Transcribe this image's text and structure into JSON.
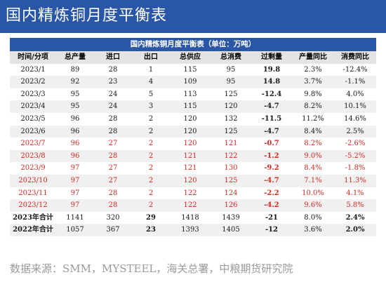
{
  "header": {
    "title": "国内精炼铜月度平衡表"
  },
  "table": {
    "caption": "国内精炼铜月度平衡表（单位：万吨）",
    "columns": [
      "时间/分项",
      "总产量",
      "进口",
      "出口",
      "总供应",
      "总消费",
      "过剩量",
      "产量同比",
      "消费同比"
    ],
    "rows": [
      {
        "period": "2023/1",
        "cells": [
          "89",
          "28",
          "1",
          "115",
          "95",
          "19.8",
          "2.3%",
          "-12.4%"
        ],
        "highlight": false
      },
      {
        "period": "2023/2",
        "cells": [
          "92",
          "23",
          "4",
          "109",
          "95",
          "14.8",
          "3.7%",
          "-1.1%"
        ],
        "highlight": false
      },
      {
        "period": "2023/3",
        "cells": [
          "95",
          "24",
          "5",
          "113",
          "125",
          "-12.4",
          "9.8%",
          "4.0%"
        ],
        "highlight": false
      },
      {
        "period": "2023/4",
        "cells": [
          "95",
          "24",
          "3",
          "115",
          "120",
          "-4.7",
          "8.2%",
          "10.1%"
        ],
        "highlight": false
      },
      {
        "period": "2023/5",
        "cells": [
          "96",
          "28",
          "2",
          "120",
          "132",
          "-11.5",
          "11.2%",
          "14.6%"
        ],
        "highlight": false
      },
      {
        "period": "2023/6",
        "cells": [
          "96",
          "28",
          "2",
          "120",
          "125",
          "-4.7",
          "8.4%",
          "2.5%"
        ],
        "highlight": false
      },
      {
        "period": "2023/7",
        "cells": [
          "96",
          "27",
          "2",
          "120",
          "121",
          "-0.7",
          "8.2%",
          "-2.6%"
        ],
        "highlight": true
      },
      {
        "period": "2023/8",
        "cells": [
          "96",
          "28",
          "2",
          "121",
          "122",
          "-1.2",
          "9.0%",
          "-5.2%"
        ],
        "highlight": true
      },
      {
        "period": "2023/9",
        "cells": [
          "97",
          "27",
          "2",
          "121",
          "130",
          "-9.2",
          "8.4%",
          "-1.8%"
        ],
        "highlight": true
      },
      {
        "period": "2023/10",
        "cells": [
          "97",
          "27",
          "2",
          "120",
          "125",
          "-4.7",
          "7.1%",
          "11.3%"
        ],
        "highlight": true
      },
      {
        "period": "2023/11",
        "cells": [
          "97",
          "28",
          "2",
          "122",
          "124",
          "-2.2",
          "10.0%",
          "4.1%"
        ],
        "highlight": true
      },
      {
        "period": "2023/12",
        "cells": [
          "97",
          "28",
          "2",
          "122",
          "126",
          "-4.2",
          "9.6%",
          "5.8%"
        ],
        "highlight": true
      },
      {
        "period": "2023年合计",
        "cells": [
          "1141",
          "320",
          "29",
          "1418",
          "1439",
          "-21",
          "8.0%",
          "2.4%"
        ],
        "highlight": false,
        "total": true
      },
      {
        "period": "2022年合计",
        "cells": [
          "1057",
          "367",
          "23",
          "1393",
          "1405",
          "-12",
          "3.6%",
          "2.0%"
        ],
        "highlight": false,
        "total": true
      }
    ]
  },
  "footer": {
    "source": "数据来源：SMM，MYSTEEL，海关总署，中粮期货研究院"
  }
}
